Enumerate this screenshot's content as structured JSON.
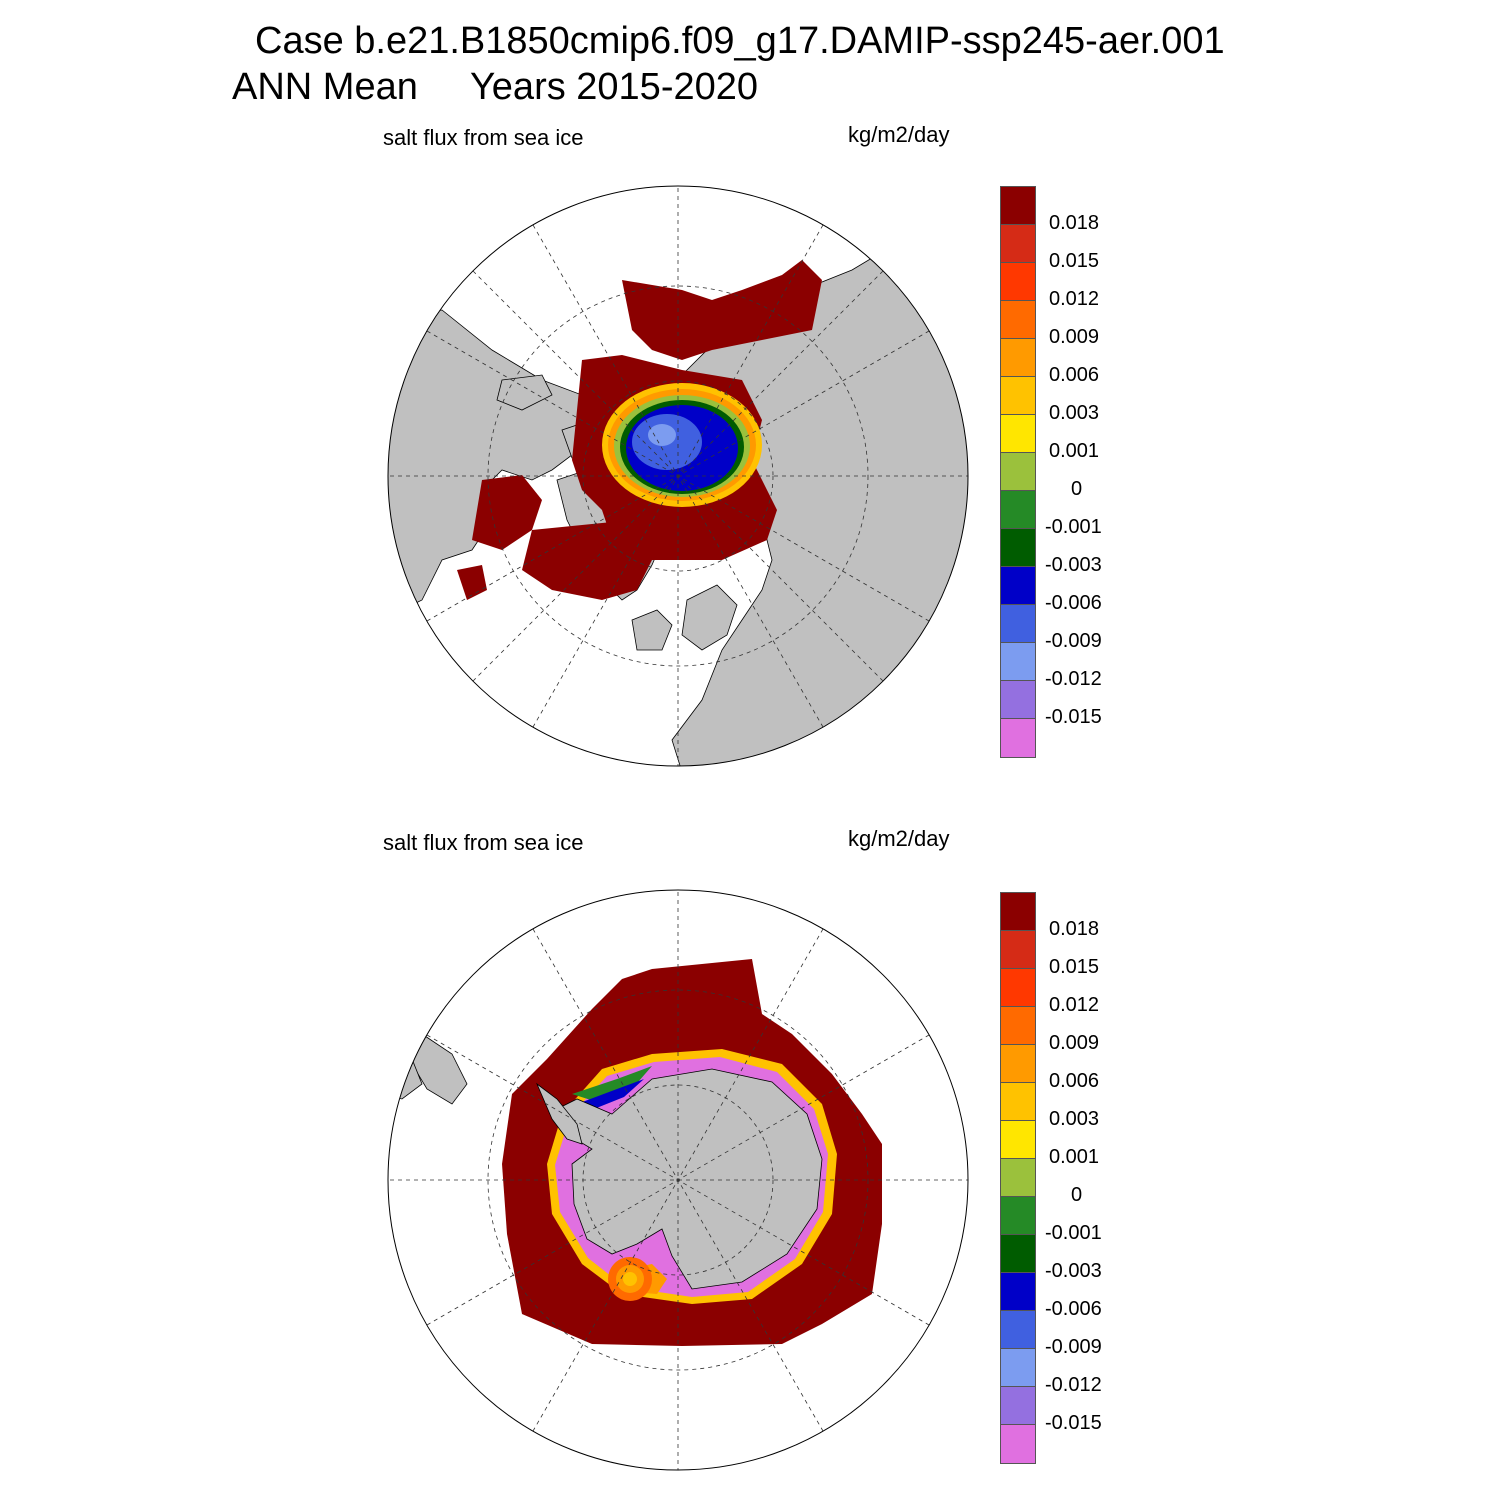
{
  "title": {
    "line1": "Case b.e21.B1850cmip6.f09_g17.DAMIP-ssp245-aer.001",
    "line2": "ANN Mean     Years 2015-2020"
  },
  "panels": [
    {
      "variable": "salt flux from sea ice",
      "units": "kg/m2/day",
      "hemisphere": "north"
    },
    {
      "variable": "salt flux from sea ice",
      "units": "kg/m2/day",
      "hemisphere": "south"
    }
  ],
  "colorbar": {
    "colors": [
      "#8b0000",
      "#d52b16",
      "#ff3800",
      "#ff6a00",
      "#ff9a00",
      "#ffc200",
      "#ffe600",
      "#9bc13c",
      "#258a26",
      "#005c00",
      "#0000c8",
      "#4060e0",
      "#7c9cf0",
      "#9470e0",
      "#e070e0"
    ],
    "labels": [
      "0.018",
      "0.015",
      "0.012",
      "0.009",
      "0.006",
      "0.003",
      "0.001",
      "0",
      "-0.001",
      "-0.003",
      "-0.006",
      "-0.009",
      "-0.012",
      "-0.015"
    ]
  },
  "colors": {
    "land": "#c0c0c0",
    "ocean_blank": "#ffffff",
    "high_flux": "#8b0000"
  }
}
